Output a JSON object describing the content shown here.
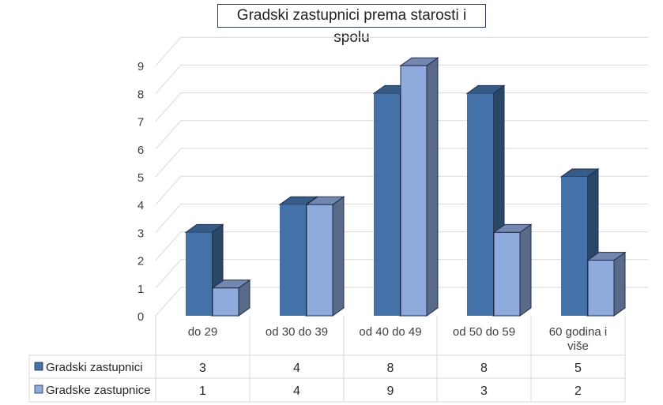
{
  "chart_data": {
    "type": "bar",
    "title": "Gradski zastupnici prema starosti i spolu",
    "categories": [
      "do 29",
      "od 30 do 39",
      "od 40 do 49",
      "od 50 do 59",
      "60 godina i više"
    ],
    "category_lines": [
      [
        "do 29"
      ],
      [
        "od 30 do 39"
      ],
      [
        "od 40 do 49"
      ],
      [
        "od 50 do 59"
      ],
      [
        "60 godina i",
        "više"
      ]
    ],
    "series": [
      {
        "name": "Gradski zastupnici",
        "values": [
          3,
          4,
          8,
          8,
          5
        ],
        "color": "#4472a8"
      },
      {
        "name": "Gradske zastupnice",
        "values": [
          1,
          4,
          9,
          3,
          2
        ],
        "color": "#8faadc"
      }
    ],
    "yticks": [
      0,
      1,
      2,
      3,
      4,
      5,
      6,
      7,
      8,
      9
    ],
    "ylim": [
      0,
      9
    ],
    "grid": true,
    "legend": "data-table",
    "style": "3d-clustered-column"
  }
}
